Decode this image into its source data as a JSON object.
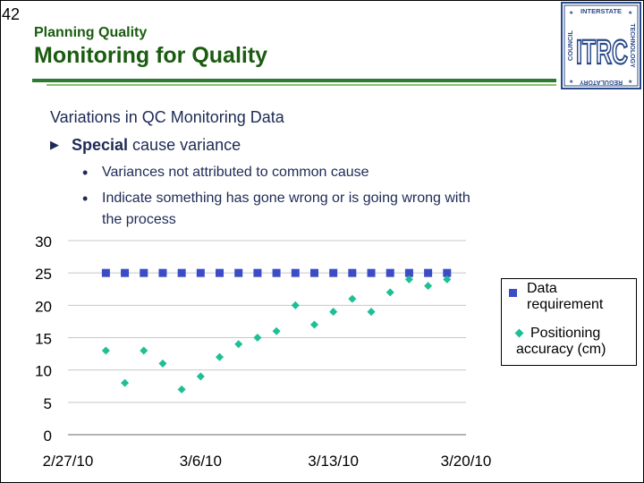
{
  "slide": {
    "number": "42",
    "subtitle": "Planning Quality",
    "title": "Monitoring for Quality"
  },
  "logo": {
    "top_text": "INTERSTATE",
    "left_text": "COUNCIL",
    "right_text": "TECHNOLOGY",
    "bottom_text": "REGULATORY",
    "main": "ITRC",
    "colors": {
      "border": "#2a4a8a",
      "letters": "#2a4a8a"
    }
  },
  "content": {
    "heading": "Variations in QC Monitoring Data",
    "bullet1_bold": "Special",
    "bullet1_rest": " cause variance",
    "bullet2a": "Variances not attributed to common cause",
    "bullet2b_line1": "Indicate something has gone wrong or is going wrong with",
    "bullet2b_line2": "the process"
  },
  "colors": {
    "title": "#1a5c10",
    "body_text": "#1e2a55",
    "series_requirement": "#3a4cc6",
    "series_accuracy": "#1fbf95",
    "gridline": "#c8c8c8"
  },
  "chart_data": {
    "type": "scatter",
    "title": "",
    "xlabel": "",
    "ylabel": "",
    "x_ticks": [
      "2/27/10",
      "3/6/10",
      "3/13/10",
      "3/20/10"
    ],
    "xlim": [
      "2/27/10",
      "3/20/10"
    ],
    "ylim": [
      0,
      30
    ],
    "y_ticks": [
      0,
      5,
      10,
      15,
      20,
      25,
      30
    ],
    "grid": "horizontal",
    "legend_position": "right",
    "series": [
      {
        "name": "Data requirement",
        "marker": "square",
        "color": "#3a4cc6",
        "x": [
          "3/1/10",
          "3/2/10",
          "3/3/10",
          "3/4/10",
          "3/5/10",
          "3/6/10",
          "3/7/10",
          "3/8/10",
          "3/9/10",
          "3/10/10",
          "3/11/10",
          "3/12/10",
          "3/13/10",
          "3/14/10",
          "3/15/10",
          "3/16/10",
          "3/17/10",
          "3/18/10",
          "3/19/10"
        ],
        "y": [
          25,
          25,
          25,
          25,
          25,
          25,
          25,
          25,
          25,
          25,
          25,
          25,
          25,
          25,
          25,
          25,
          25,
          25,
          25
        ]
      },
      {
        "name": "Positioning accuracy (cm)",
        "marker": "diamond",
        "color": "#1fbf95",
        "x": [
          "3/1/10",
          "3/2/10",
          "3/3/10",
          "3/4/10",
          "3/5/10",
          "3/6/10",
          "3/7/10",
          "3/8/10",
          "3/9/10",
          "3/10/10",
          "3/11/10",
          "3/12/10",
          "3/13/10",
          "3/14/10",
          "3/15/10",
          "3/16/10",
          "3/17/10",
          "3/18/10",
          "3/19/10"
        ],
        "y": [
          13,
          8,
          13,
          11,
          7,
          9,
          12,
          14,
          15,
          16,
          20,
          17,
          19,
          21,
          19,
          22,
          24,
          23,
          24
        ]
      }
    ]
  }
}
